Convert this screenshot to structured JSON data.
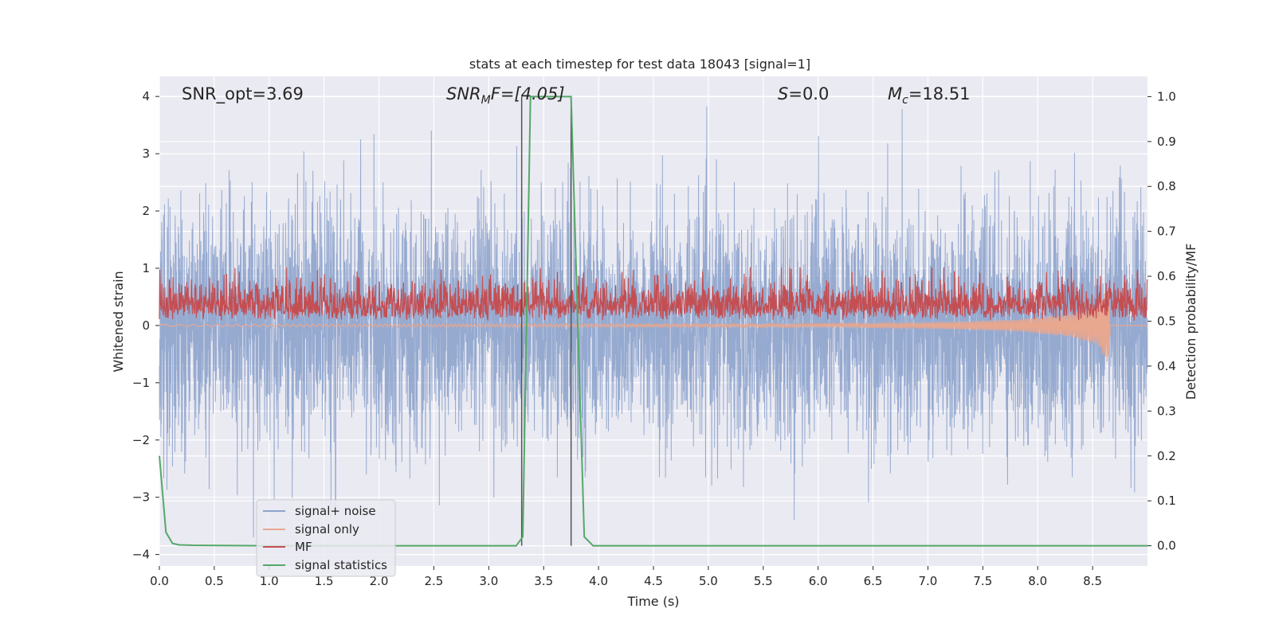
{
  "chart_data": {
    "type": "line",
    "title": "stats at each timestep for test data 18043 [signal=1]",
    "xlabel": "Time (s)",
    "ylabel_left": "Whitened strain",
    "ylabel_right": "Detection probability/MF",
    "xlim": [
      0.0,
      9.0
    ],
    "ylim_left": [
      -4.2,
      4.35
    ],
    "ylim_right": [
      -0.045,
      1.045
    ],
    "grid": true,
    "legend_position": "lower-left",
    "x_ticks": [
      "0.0",
      "0.5",
      "1.0",
      "1.5",
      "2.0",
      "2.5",
      "3.0",
      "3.5",
      "4.0",
      "4.5",
      "5.0",
      "5.5",
      "6.0",
      "6.5",
      "7.0",
      "7.5",
      "8.0",
      "8.5"
    ],
    "y_ticks_left": [
      "−4",
      "−3",
      "−2",
      "−1",
      "0",
      "1",
      "2",
      "3",
      "4"
    ],
    "y_ticks_right": [
      "0.0",
      "0.1",
      "0.2",
      "0.3",
      "0.4",
      "0.5",
      "0.6",
      "0.7",
      "0.8",
      "0.9",
      "1.0"
    ],
    "annotations": {
      "snr_opt": "SNR_opt=3.69",
      "snr_mf_main": "SNR",
      "snr_mf_sub": "M",
      "snr_mf_tail": "F=[4.05]",
      "s_var": "S",
      "s_value": "=0.0",
      "mc_var": "M",
      "mc_sub": "c",
      "mc_value": "=18.51"
    },
    "vertical_markers_s": [
      3.3,
      3.75
    ],
    "series": [
      {
        "name": "signal+ noise",
        "axis": "left",
        "color": "#8da3cc",
        "description_range": [
          -3.7,
          4.0
        ],
        "typical_band": [
          -2.2,
          2.4
        ]
      },
      {
        "name": "signal only",
        "axis": "left",
        "color": "#e8a78f",
        "x": [
          0.0,
          6.0,
          7.0,
          7.8,
          8.3,
          8.55,
          8.65,
          8.66
        ],
        "amplitude": [
          0.02,
          0.03,
          0.05,
          0.1,
          0.2,
          0.35,
          0.7,
          0.0
        ]
      },
      {
        "name": "MF",
        "axis": "right",
        "color": "#c44e52",
        "typical_band": [
          0.5,
          0.6
        ]
      },
      {
        "name": "signal statistics",
        "axis": "right",
        "color": "#55a868",
        "x": [
          0.0,
          0.06,
          0.12,
          0.18,
          0.3,
          1.0,
          3.0,
          3.25,
          3.31,
          3.38,
          3.5,
          3.7,
          3.75,
          3.81,
          3.87,
          3.95,
          4.5,
          9.0
        ],
        "y": [
          0.2,
          0.03,
          0.005,
          0.002,
          0.001,
          0.0,
          0.0,
          0.0,
          0.02,
          1.0,
          1.0,
          1.0,
          1.0,
          0.5,
          0.02,
          0.0,
          0.0,
          0.0
        ]
      }
    ]
  }
}
